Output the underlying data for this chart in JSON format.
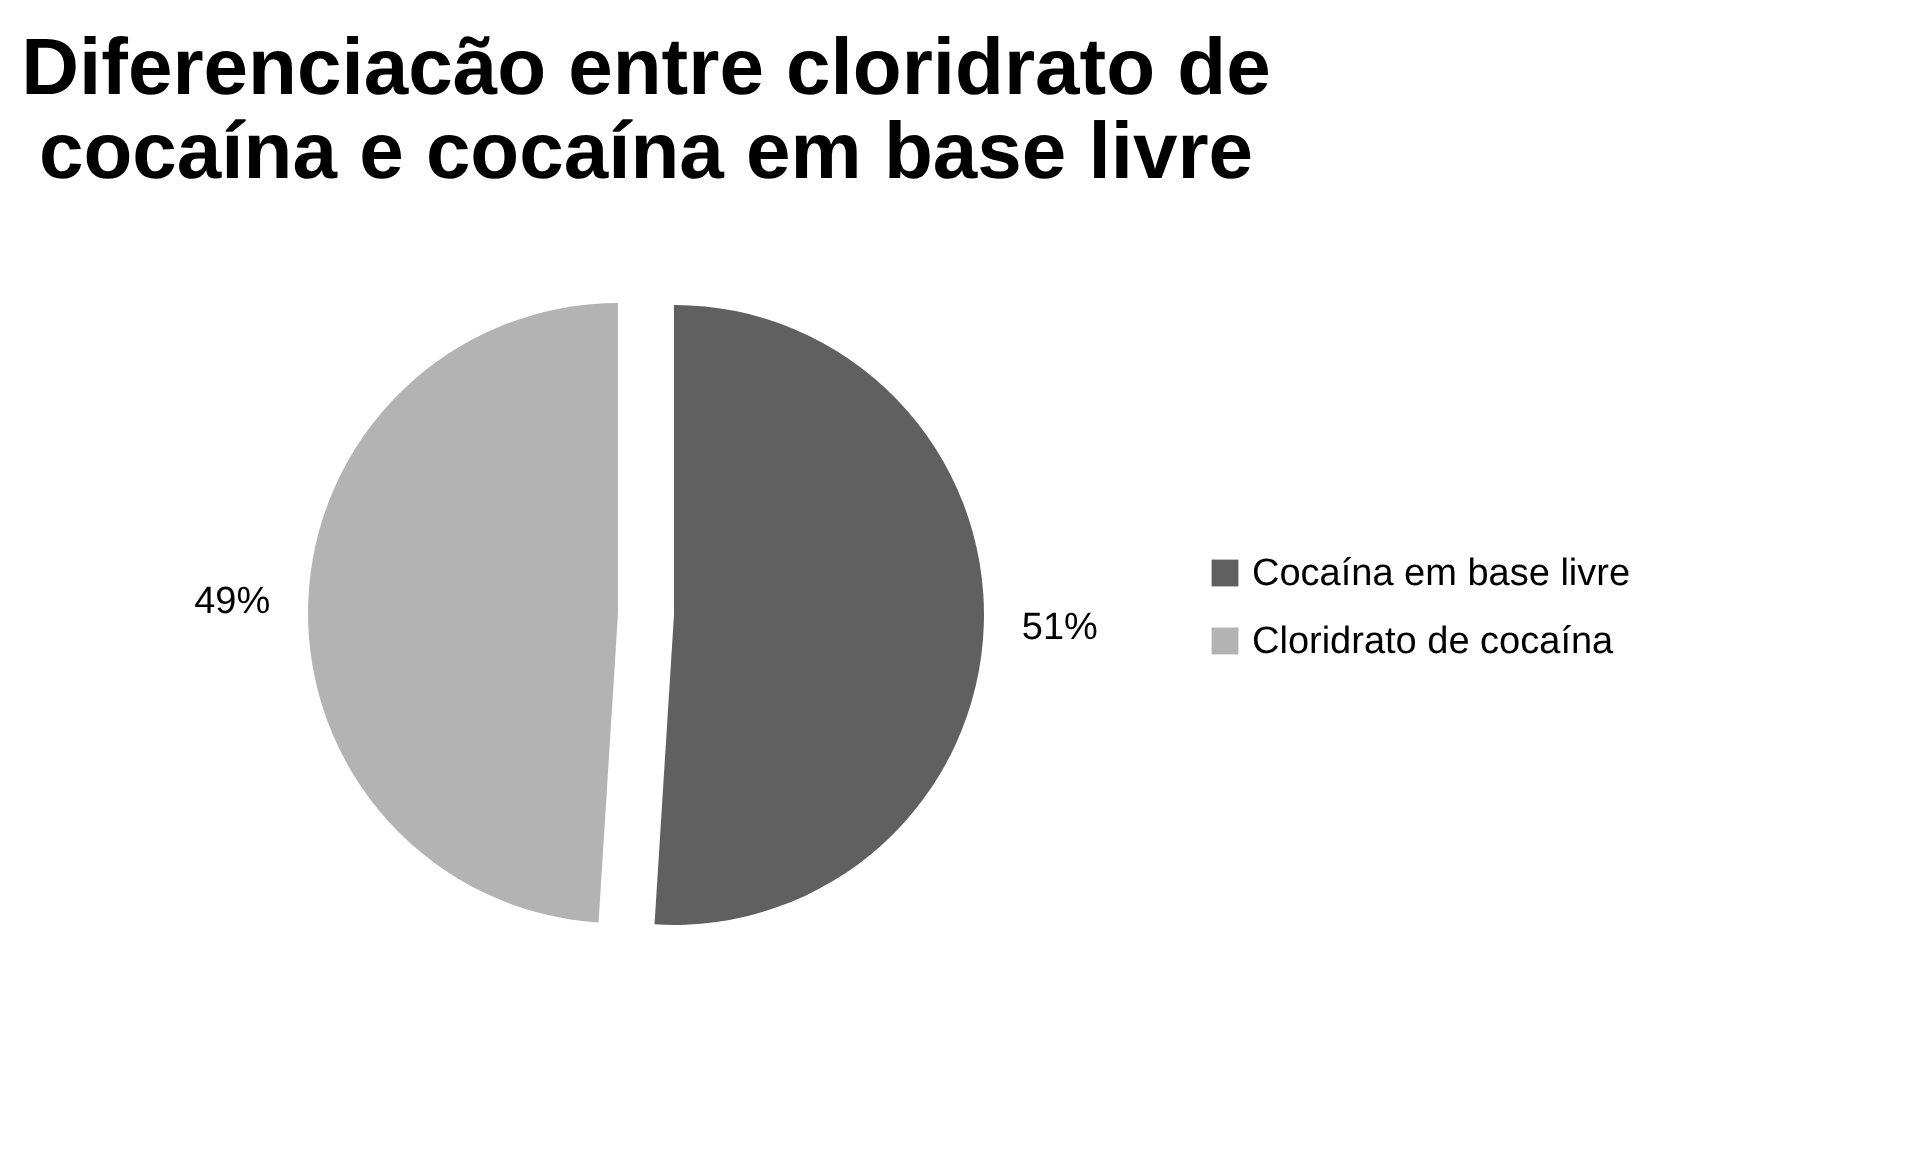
{
  "chart_data": {
    "type": "pie",
    "title": "Diferenciacão entre cloridrato de cocaína e cocaína em base livre",
    "categories": [
      "Cocaína em base livre",
      "Cloridrato de cocaína"
    ],
    "values": [
      51,
      49
    ],
    "colors": [
      "#606060",
      "#b3b3b3"
    ],
    "value_labels": [
      "51%",
      "49%"
    ],
    "legend": "right"
  }
}
